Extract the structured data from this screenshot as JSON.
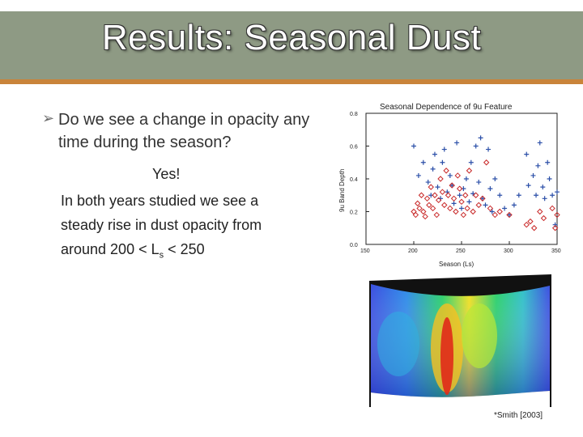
{
  "slide": {
    "title": "Results: Seasonal Dust",
    "bullet_glyph": "➢",
    "question": "Do we see a change in opacity any time during the season?",
    "yes": "Yes!",
    "answer_prefix": "In both years studied we see a steady rise in dust opacity from around 200 < L",
    "answer_subscript": "s",
    "answer_suffix": " < 250",
    "citation": "*Smith [2003]"
  },
  "chart_data": {
    "type": "scatter",
    "title": "Seasonal Dependence of 9u Feature",
    "xlabel": "Season (Ls)",
    "ylabel": "9u Band Depth",
    "xlim": [
      150,
      350
    ],
    "ylim": [
      0,
      0.8
    ],
    "xticks": [
      "150",
      "200",
      "250",
      "300",
      "350"
    ],
    "yticks": [
      "0.0",
      "0.2",
      "0.4",
      "0.6",
      "0.8"
    ],
    "series": [
      {
        "marker": "plus",
        "color": "#2b4fa8",
        "points": [
          [
            200,
            0.6
          ],
          [
            205,
            0.42
          ],
          [
            210,
            0.5
          ],
          [
            215,
            0.38
          ],
          [
            218,
            0.3
          ],
          [
            220,
            0.46
          ],
          [
            222,
            0.55
          ],
          [
            225,
            0.35
          ],
          [
            228,
            0.28
          ],
          [
            230,
            0.5
          ],
          [
            232,
            0.58
          ],
          [
            235,
            0.32
          ],
          [
            238,
            0.42
          ],
          [
            240,
            0.36
          ],
          [
            242,
            0.25
          ],
          [
            245,
            0.62
          ],
          [
            248,
            0.3
          ],
          [
            250,
            0.22
          ],
          [
            252,
            0.34
          ],
          [
            255,
            0.4
          ],
          [
            258,
            0.26
          ],
          [
            260,
            0.5
          ],
          [
            262,
            0.31
          ],
          [
            265,
            0.6
          ],
          [
            268,
            0.38
          ],
          [
            270,
            0.65
          ],
          [
            272,
            0.28
          ],
          [
            275,
            0.24
          ],
          [
            278,
            0.58
          ],
          [
            280,
            0.34
          ],
          [
            282,
            0.2
          ],
          [
            285,
            0.4
          ],
          [
            290,
            0.3
          ],
          [
            295,
            0.22
          ],
          [
            300,
            0.18
          ],
          [
            305,
            0.24
          ],
          [
            310,
            0.3
          ],
          [
            318,
            0.55
          ],
          [
            320,
            0.36
          ],
          [
            325,
            0.42
          ],
          [
            328,
            0.3
          ],
          [
            330,
            0.48
          ],
          [
            332,
            0.62
          ],
          [
            335,
            0.35
          ],
          [
            337,
            0.28
          ],
          [
            340,
            0.5
          ],
          [
            342,
            0.4
          ],
          [
            345,
            0.3
          ],
          [
            348,
            0.12
          ],
          [
            350,
            0.32
          ]
        ]
      },
      {
        "marker": "diamond",
        "color": "#c82828",
        "points": [
          [
            200,
            0.2
          ],
          [
            202,
            0.18
          ],
          [
            204,
            0.25
          ],
          [
            206,
            0.22
          ],
          [
            208,
            0.3
          ],
          [
            210,
            0.2
          ],
          [
            212,
            0.17
          ],
          [
            214,
            0.28
          ],
          [
            216,
            0.24
          ],
          [
            218,
            0.35
          ],
          [
            220,
            0.22
          ],
          [
            222,
            0.3
          ],
          [
            224,
            0.18
          ],
          [
            226,
            0.27
          ],
          [
            228,
            0.4
          ],
          [
            230,
            0.32
          ],
          [
            232,
            0.24
          ],
          [
            234,
            0.45
          ],
          [
            236,
            0.3
          ],
          [
            238,
            0.22
          ],
          [
            240,
            0.36
          ],
          [
            242,
            0.28
          ],
          [
            244,
            0.2
          ],
          [
            246,
            0.42
          ],
          [
            248,
            0.34
          ],
          [
            250,
            0.26
          ],
          [
            252,
            0.18
          ],
          [
            254,
            0.3
          ],
          [
            256,
            0.22
          ],
          [
            258,
            0.45
          ],
          [
            262,
            0.2
          ],
          [
            265,
            0.3
          ],
          [
            268,
            0.24
          ],
          [
            272,
            0.28
          ],
          [
            276,
            0.5
          ],
          [
            280,
            0.22
          ],
          [
            285,
            0.18
          ],
          [
            290,
            0.2
          ],
          [
            300,
            0.18
          ],
          [
            318,
            0.12
          ],
          [
            322,
            0.14
          ],
          [
            326,
            0.1
          ],
          [
            332,
            0.2
          ],
          [
            336,
            0.16
          ],
          [
            345,
            0.22
          ],
          [
            348,
            0.1
          ],
          [
            350,
            0.18
          ]
        ]
      }
    ],
    "grid": false
  }
}
